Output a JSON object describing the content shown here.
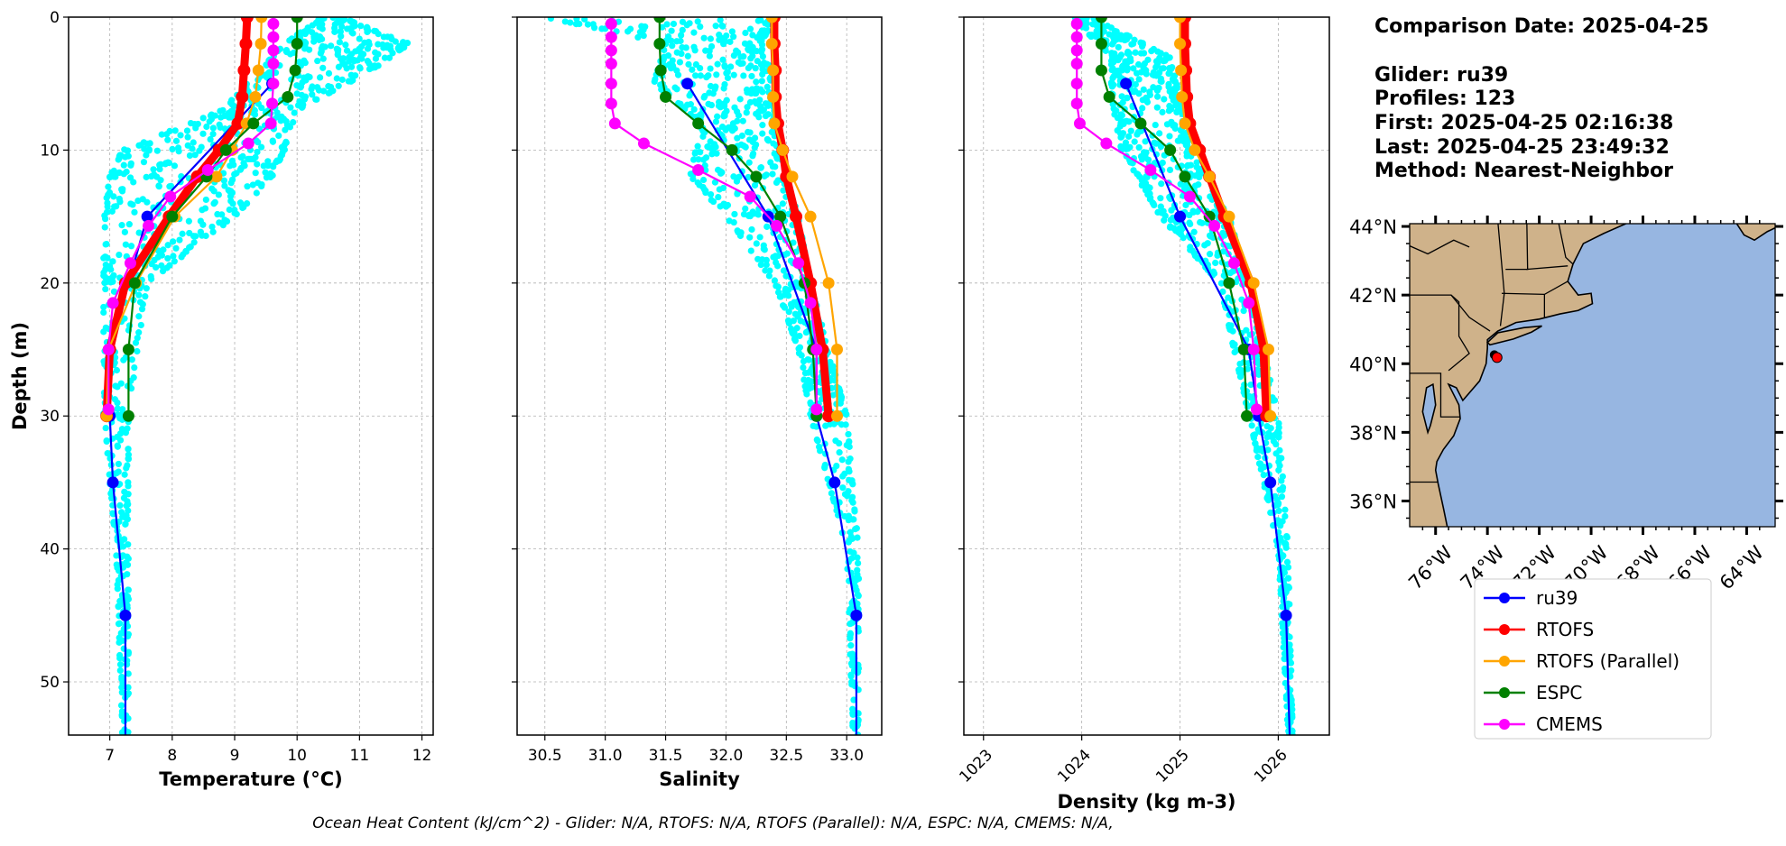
{
  "info": {
    "comparison_date": "Comparison Date: 2025-04-25",
    "glider": "Glider: ru39",
    "profiles": "Profiles: 123",
    "first": "First: 2025-04-25 02:16:38",
    "last": "Last: 2025-04-25 23:49:32",
    "method": "Method: Nearest-Neighbor"
  },
  "footer": "Ocean Heat Content (kJ/cm^2) - Glider: N/A,  RTOFS: N/A,  RTOFS (Parallel): N/A,  ESPC: N/A,  CMEMS: N/A,",
  "legend": [
    {
      "label": "ru39",
      "color": "#0000ff"
    },
    {
      "label": "RTOFS",
      "color": "#ff0000"
    },
    {
      "label": "RTOFS (Parallel)",
      "color": "#ffa500"
    },
    {
      "label": "ESPC",
      "color": "#008000"
    },
    {
      "label": "CMEMS",
      "color": "#ff00ff"
    }
  ],
  "chart_data": [
    {
      "type": "line",
      "id": "temperature",
      "xlabel": "Temperature (°C)",
      "ylabel": "Depth (m)",
      "xlim": [
        6.34,
        12.18
      ],
      "ylim": [
        54,
        0
      ],
      "xticks": [
        7,
        8,
        9,
        10,
        11,
        12
      ],
      "xtick_labels": [
        "7",
        "8",
        "9",
        "10",
        "11",
        "12"
      ],
      "yticks": [
        0,
        10,
        20,
        30,
        40,
        50
      ],
      "ytick_labels": [
        "0",
        "10",
        "20",
        "30",
        "40",
        "50"
      ],
      "grid": true,
      "scatter_color": "#00ffff",
      "glider_scatter_envelope": [
        [
          0,
          10.4,
          10.7
        ],
        [
          2,
          9.8,
          11.8
        ],
        [
          4,
          9.4,
          11.2
        ],
        [
          7,
          8.8,
          10.0
        ],
        [
          10,
          7.2,
          9.8
        ],
        [
          12,
          7.0,
          9.6
        ],
        [
          15,
          6.9,
          9.0
        ],
        [
          20,
          6.9,
          7.6
        ],
        [
          30,
          6.9,
          7.3
        ],
        [
          40,
          7.1,
          7.3
        ],
        [
          54,
          7.2,
          7.3
        ]
      ],
      "series": [
        {
          "name": "ru39",
          "depth": [
            5,
            15,
            25,
            30,
            35,
            45,
            55
          ],
          "values": [
            9.6,
            7.6,
            7.0,
            7.0,
            7.05,
            7.25,
            7.25
          ]
        },
        {
          "name": "RTOFS",
          "depth": [
            0,
            2,
            4,
            6,
            8,
            10,
            12,
            15,
            20,
            25,
            30
          ],
          "values": [
            9.2,
            9.18,
            9.15,
            9.12,
            9.05,
            8.75,
            8.4,
            7.95,
            7.25,
            7.0,
            6.95
          ]
        },
        {
          "name": "RTOFS (Parallel)",
          "depth": [
            0,
            2,
            4,
            6,
            8,
            10,
            12,
            15,
            20,
            25,
            30
          ],
          "values": [
            9.43,
            9.42,
            9.38,
            9.33,
            9.19,
            8.96,
            8.71,
            8.04,
            7.42,
            6.98,
            6.95
          ]
        },
        {
          "name": "ESPC",
          "depth": [
            0,
            2,
            4,
            6,
            8,
            10,
            12,
            15,
            20,
            25,
            30
          ],
          "values": [
            10.0,
            10.0,
            9.97,
            9.85,
            9.3,
            8.86,
            8.55,
            8.0,
            7.4,
            7.3,
            7.3
          ]
        },
        {
          "name": "CMEMS",
          "depth": [
            0.5,
            1.5,
            2.5,
            3.5,
            5,
            6.5,
            8,
            9.5,
            11.5,
            13.5,
            15.7,
            18.5,
            21.5,
            25,
            29.5
          ],
          "values": [
            9.62,
            9.62,
            9.62,
            9.62,
            9.62,
            9.6,
            9.58,
            9.22,
            8.57,
            7.97,
            7.62,
            7.33,
            7.05,
            6.98,
            6.98
          ]
        }
      ]
    },
    {
      "type": "line",
      "id": "salinity",
      "xlabel": "Salinity",
      "xlim": [
        30.27,
        33.29
      ],
      "ylim": [
        54,
        0
      ],
      "xticks": [
        30.5,
        31.0,
        31.5,
        32.0,
        32.5,
        33.0
      ],
      "xtick_labels": [
        "30.5",
        "31.0",
        "31.5",
        "32.0",
        "32.5",
        "33.0"
      ],
      "yticks": [
        0,
        10,
        20,
        30,
        40,
        50
      ],
      "grid": true,
      "scatter_color": "#00ffff",
      "glider_scatter_envelope": [
        [
          0,
          30.5,
          32.4
        ],
        [
          2,
          31.5,
          32.3
        ],
        [
          5,
          31.4,
          32.4
        ],
        [
          8,
          31.8,
          32.4
        ],
        [
          12,
          31.7,
          32.5
        ],
        [
          15,
          32.0,
          32.6
        ],
        [
          20,
          32.4,
          32.7
        ],
        [
          25,
          32.6,
          32.85
        ],
        [
          30,
          32.7,
          33.0
        ],
        [
          40,
          33.0,
          33.1
        ],
        [
          54,
          33.05,
          33.1
        ]
      ],
      "series": [
        {
          "name": "ru39",
          "depth": [
            5,
            15,
            25,
            30,
            35,
            45,
            55
          ],
          "values": [
            31.68,
            32.35,
            32.75,
            32.75,
            32.9,
            33.08,
            33.08
          ]
        },
        {
          "name": "RTOFS",
          "depth": [
            0,
            2,
            4,
            6,
            8,
            10,
            12,
            15,
            20,
            25,
            30
          ],
          "values": [
            32.4,
            32.4,
            32.41,
            32.41,
            32.43,
            32.47,
            32.5,
            32.58,
            32.7,
            32.8,
            32.85
          ]
        },
        {
          "name": "RTOFS (Parallel)",
          "depth": [
            0,
            2,
            4,
            6,
            8,
            10,
            12,
            15,
            20,
            25,
            30
          ],
          "values": [
            32.38,
            32.38,
            32.39,
            32.39,
            32.4,
            32.47,
            32.55,
            32.7,
            32.85,
            32.92,
            32.92
          ]
        },
        {
          "name": "ESPC",
          "depth": [
            0,
            2,
            4,
            6,
            8,
            10,
            12,
            15,
            20,
            25,
            30
          ],
          "values": [
            31.45,
            31.45,
            31.46,
            31.5,
            31.77,
            32.05,
            32.25,
            32.45,
            32.65,
            32.72,
            32.75
          ]
        },
        {
          "name": "CMEMS",
          "depth": [
            0.5,
            1.5,
            2.5,
            3.5,
            5,
            6.5,
            8,
            9.5,
            11.5,
            13.5,
            15.7,
            18.5,
            21.5,
            25,
            29.5
          ],
          "values": [
            31.05,
            31.05,
            31.05,
            31.05,
            31.05,
            31.05,
            31.08,
            31.32,
            31.77,
            32.2,
            32.42,
            32.6,
            32.7,
            32.75,
            32.75
          ]
        }
      ]
    },
    {
      "type": "line",
      "id": "density",
      "xlabel": "Density (kg m-3)",
      "xlim": [
        1022.8,
        1026.52
      ],
      "ylim": [
        54,
        0
      ],
      "xticks": [
        1023,
        1024,
        1025,
        1026
      ],
      "xtick_labels": [
        "1023",
        "1024",
        "1025",
        "1026"
      ],
      "yticks": [
        0,
        10,
        20,
        30,
        40,
        50
      ],
      "grid": true,
      "scatter_color": "#00ffff",
      "glider_scatter_envelope": [
        [
          0,
          1023.9,
          1024.1
        ],
        [
          3,
          1024.3,
          1024.9
        ],
        [
          6,
          1024.3,
          1025.0
        ],
        [
          10,
          1024.4,
          1025.1
        ],
        [
          15,
          1024.8,
          1025.5
        ],
        [
          20,
          1025.4,
          1025.7
        ],
        [
          30,
          1025.7,
          1026.0
        ],
        [
          40,
          1026.0,
          1026.1
        ],
        [
          54,
          1026.1,
          1026.15
        ]
      ],
      "series": [
        {
          "name": "ru39",
          "depth": [
            5,
            15,
            25,
            30,
            35,
            45,
            55
          ],
          "values": [
            1024.45,
            1025.0,
            1025.7,
            1025.8,
            1025.92,
            1026.08,
            1026.12
          ]
        },
        {
          "name": "RTOFS",
          "depth": [
            0,
            2,
            4,
            6,
            8,
            10,
            12,
            15,
            20,
            25,
            30
          ],
          "values": [
            1025.05,
            1025.05,
            1025.06,
            1025.07,
            1025.1,
            1025.2,
            1025.3,
            1025.45,
            1025.72,
            1025.85,
            1025.88
          ]
        },
        {
          "name": "RTOFS (Parallel)",
          "depth": [
            0,
            2,
            4,
            6,
            8,
            10,
            12,
            15,
            20,
            25,
            30
          ],
          "values": [
            1025.0,
            1025.0,
            1025.01,
            1025.02,
            1025.05,
            1025.15,
            1025.3,
            1025.5,
            1025.75,
            1025.9,
            1025.92
          ]
        },
        {
          "name": "ESPC",
          "depth": [
            0,
            2,
            4,
            6,
            8,
            10,
            12,
            15,
            20,
            25,
            30
          ],
          "values": [
            1024.2,
            1024.2,
            1024.2,
            1024.28,
            1024.6,
            1024.9,
            1025.05,
            1025.3,
            1025.5,
            1025.65,
            1025.68
          ]
        },
        {
          "name": "CMEMS",
          "depth": [
            0.5,
            1.5,
            2.5,
            3.5,
            5,
            6.5,
            8,
            9.5,
            11.5,
            13.5,
            15.7,
            18.5,
            21.5,
            25,
            29.5
          ],
          "values": [
            1023.95,
            1023.95,
            1023.95,
            1023.95,
            1023.95,
            1023.95,
            1023.98,
            1024.25,
            1024.7,
            1025.1,
            1025.35,
            1025.55,
            1025.7,
            1025.75,
            1025.78
          ]
        }
      ]
    },
    {
      "type": "map",
      "id": "location-map",
      "lon_range": [
        -77.0,
        -62.9
      ],
      "lat_range": [
        35.25,
        44.08
      ],
      "lon_ticks": [
        -76,
        -74,
        -72,
        -70,
        -68,
        -66,
        -64
      ],
      "lon_tick_labels": [
        "76°W",
        "74°W",
        "72°W",
        "70°W",
        "68°W",
        "66°W",
        "64°W"
      ],
      "lat_ticks": [
        36,
        38,
        40,
        42,
        44
      ],
      "lat_tick_labels": [
        "36°N",
        "38°N",
        "40°N",
        "42°N",
        "44°N"
      ],
      "glider_position": {
        "lon": -73.63,
        "lat": 40.18
      },
      "ocean_color": "#97b6e1",
      "land_color": "#cfb28a"
    }
  ]
}
